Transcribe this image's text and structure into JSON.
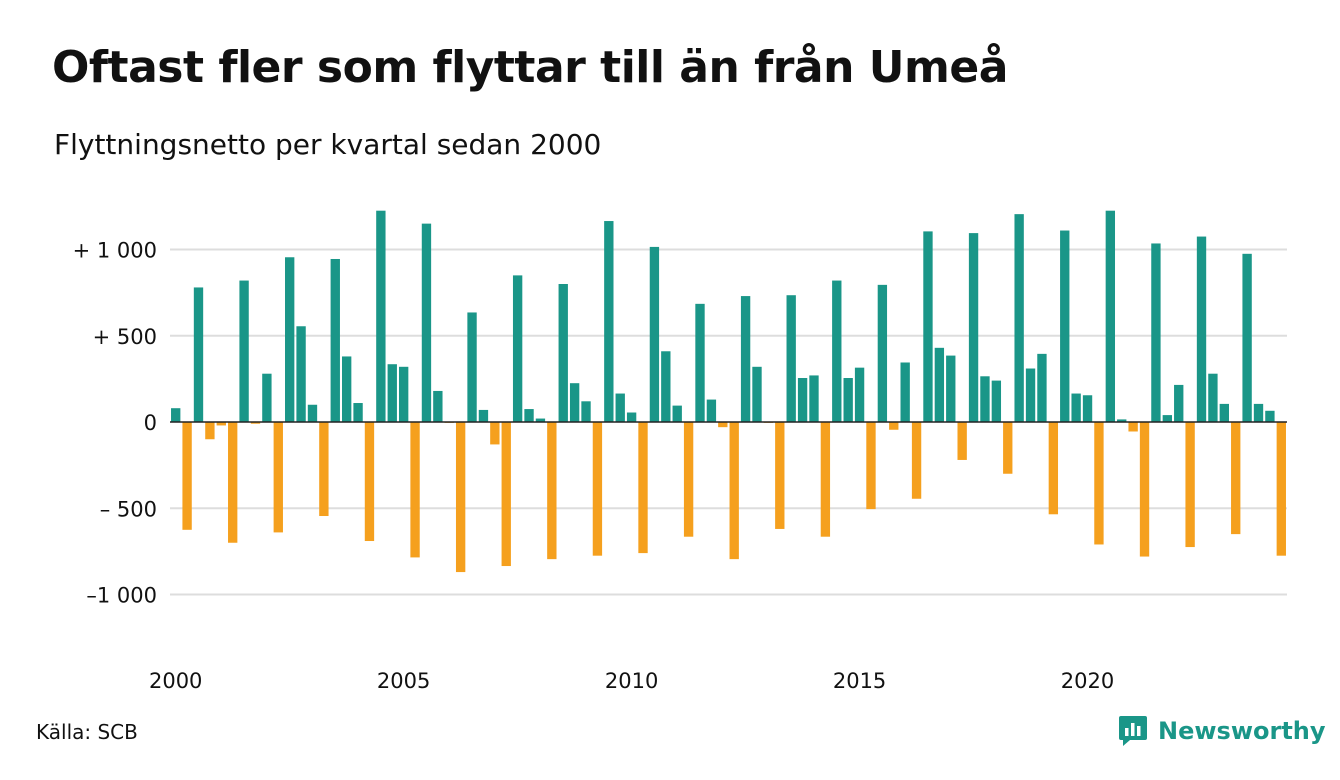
{
  "header": {
    "title": "Oftast fler som flyttar till än från Umeå",
    "subtitle": "Flyttningsnetto per kvartal sedan 2000"
  },
  "footer": {
    "source": "Källa: SCB",
    "brand": "Newsworthy"
  },
  "colors": {
    "positive": "#1a9688",
    "negative": "#f5a01e",
    "grid": "#dddddd",
    "brand": "#1a9688"
  },
  "chart_data": {
    "type": "bar",
    "title": "Oftast fler som flyttar till än från Umeå",
    "subtitle": "Flyttningsnetto per kvartal sedan 2000",
    "xlabel": "",
    "ylabel": "",
    "ylim": [
      -1150,
      1250
    ],
    "grid": true,
    "yticks": [
      {
        "value": 1000,
        "label": "+ 1 000"
      },
      {
        "value": 500,
        "label": "+   500"
      },
      {
        "value": 0,
        "label": "0"
      },
      {
        "value": -500,
        "label": "–  500"
      },
      {
        "value": -1000,
        "label": "–1 000"
      }
    ],
    "xticks": [
      {
        "year": 2000,
        "label": "2000"
      },
      {
        "year": 2005,
        "label": "2005"
      },
      {
        "year": 2010,
        "label": "2010"
      },
      {
        "year": 2015,
        "label": "2015"
      },
      {
        "year": 2020,
        "label": "2020"
      }
    ],
    "start_year": 2000,
    "series": [
      {
        "values": [
          80,
          -625,
          780,
          -100,
          -20,
          -700,
          820,
          -10,
          280,
          -640,
          955,
          555,
          100,
          -545,
          945,
          380,
          110,
          -690,
          1225,
          335,
          320,
          -785,
          1150,
          180,
          -5,
          -870,
          635,
          70,
          -130,
          -835,
          850,
          75,
          20,
          -795,
          800,
          225,
          120,
          -775,
          1165,
          165,
          55,
          -760,
          1015,
          410,
          95,
          -665,
          685,
          130,
          -30,
          -795,
          730,
          320,
          -5,
          -620,
          735,
          255,
          270,
          -665,
          820,
          255,
          315,
          -505,
          795,
          -45,
          345,
          -445,
          1105,
          430,
          385,
          -220,
          1095,
          265,
          240,
          -300,
          1205,
          310,
          395,
          -535,
          1110,
          165,
          155,
          -710,
          1225,
          15,
          -55,
          -780,
          1035,
          40,
          215,
          -725,
          1075,
          280,
          105,
          -650,
          975,
          105,
          65,
          -775
        ]
      }
    ]
  }
}
